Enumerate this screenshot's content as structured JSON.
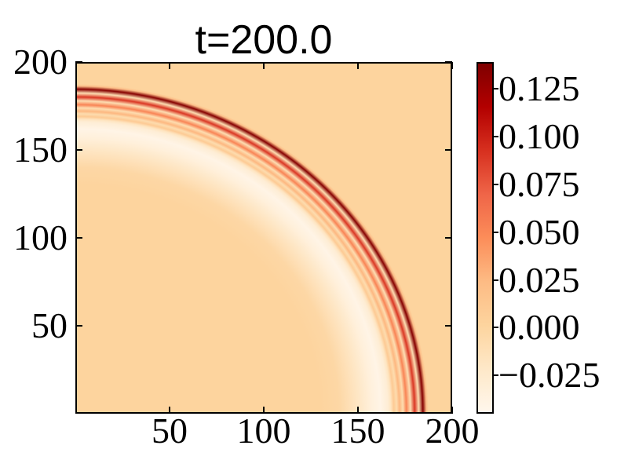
{
  "chart_data": {
    "type": "heatmap",
    "title": "t=200.0",
    "xlabel": "",
    "ylabel": "",
    "xlim": [
      0,
      200
    ],
    "ylim": [
      0,
      200
    ],
    "x_ticks": [
      50,
      100,
      150,
      200
    ],
    "y_ticks": [
      50,
      100,
      150,
      200
    ],
    "grid": false,
    "colorbar": {
      "position": "right",
      "clim": [
        -0.045,
        0.139
      ],
      "ticks": [
        {
          "value": 0.125,
          "label": "0.125"
        },
        {
          "value": 0.1,
          "label": "0.100"
        },
        {
          "value": 0.075,
          "label": "0.075"
        },
        {
          "value": 0.05,
          "label": "0.050"
        },
        {
          "value": 0.025,
          "label": "0.025"
        },
        {
          "value": 0.0,
          "label": "0.000"
        },
        {
          "value": -0.025,
          "label": "−0.025"
        }
      ]
    },
    "colormap": {
      "name": "OrRd",
      "stops": [
        {
          "pos": 0.0,
          "color": "#fff7ec"
        },
        {
          "pos": 0.125,
          "color": "#fee8c8"
        },
        {
          "pos": 0.25,
          "color": "#fdd49e"
        },
        {
          "pos": 0.375,
          "color": "#fdbb84"
        },
        {
          "pos": 0.5,
          "color": "#fc8d59"
        },
        {
          "pos": 0.625,
          "color": "#ef6548"
        },
        {
          "pos": 0.75,
          "color": "#d7301f"
        },
        {
          "pos": 0.875,
          "color": "#b30000"
        },
        {
          "pos": 1.0,
          "color": "#7f0000"
        }
      ]
    },
    "field": {
      "description": "Radially symmetric expanding wave pulse centered at the origin: sharp dark-red wavefront at r~184.5 with trailing oscillation rings at r~180, 176, 172, 169 and a broad negative (white) trough around r~162; near-zero flat background inside.",
      "center_xy": [
        0,
        0
      ],
      "radial_profile": [
        {
          "r": 0,
          "v": 0.001
        },
        {
          "r": 130,
          "v": 0.001
        },
        {
          "r": 140,
          "v": -0.003
        },
        {
          "r": 150,
          "v": -0.02
        },
        {
          "r": 157,
          "v": -0.034
        },
        {
          "r": 162,
          "v": -0.041
        },
        {
          "r": 166,
          "v": -0.03
        },
        {
          "r": 167.5,
          "v": -0.018
        },
        {
          "r": 169.0,
          "v": 0.01
        },
        {
          "r": 170.6,
          "v": -0.008
        },
        {
          "r": 172.1,
          "v": 0.026
        },
        {
          "r": 173.9,
          "v": -0.009
        },
        {
          "r": 175.7,
          "v": 0.052
        },
        {
          "r": 177.9,
          "v": -0.01
        },
        {
          "r": 180.1,
          "v": 0.09
        },
        {
          "r": 182.3,
          "v": -0.01
        },
        {
          "r": 184.5,
          "v": 0.136
        },
        {
          "r": 186.3,
          "v": 0.02
        },
        {
          "r": 187.4,
          "v": 0.001
        },
        {
          "r": 283,
          "v": 0.001
        }
      ]
    }
  }
}
